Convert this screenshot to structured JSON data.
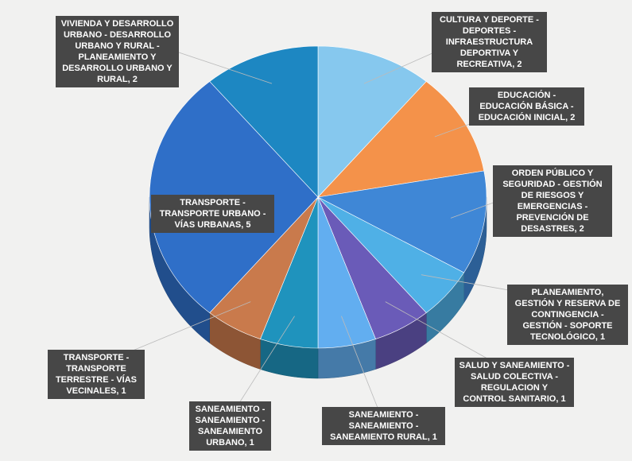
{
  "chart_data": {
    "type": "pie",
    "values": [
      2,
      2,
      2,
      1,
      1,
      1,
      1,
      1,
      5,
      2
    ],
    "value_labels": [
      "CULTURA Y DEPORTE - DEPORTES - INFRAESTRUCTURA DEPORTIVA Y RECREATIVA, 2",
      "EDUCACIÓN - EDUCACIÓN BÁSICA - EDUCACIÓN INICIAL, 2",
      "ORDEN PÚBLICO Y SEGURIDAD - GESTIÓN DE RIESGOS Y EMERGENCIAS - PREVENCIÓN DE DESASTRES, 2",
      "PLANEAMIENTO, GESTIÓN Y RESERVA DE CONTINGENCIA - GESTIÓN - SOPORTE TECNOLÓGICO, 1",
      "SALUD Y SANEAMIENTO - SALUD COLECTIVA - REGULACION Y CONTROL SANITARIO, 1",
      "SANEAMIENTO - SANEAMIENTO - SANEAMIENTO RURAL, 1",
      "SANEAMIENTO - SANEAMIENTO - SANEAMIENTO URBANO, 1",
      "TRANSPORTE - TRANSPORTE TERRESTRE - VÍAS VECINALES, 1",
      "TRANSPORTE - TRANSPORTE URBANO - VÍAS URBANAS, 5",
      "VIVIENDA Y DESARROLLO URBANO - DESARROLLO URBANO Y RURAL - PLANEAMIENTO Y DESARROLLO URBANO Y RURAL, 2"
    ],
    "colors": [
      "#86c8ee",
      "#f4924a",
      "#3f87d6",
      "#4fb0e6",
      "#6a5bb8",
      "#62aef0",
      "#1f93bd",
      "#c97a4c",
      "#2f6fc8",
      "#1d87c2"
    ]
  }
}
